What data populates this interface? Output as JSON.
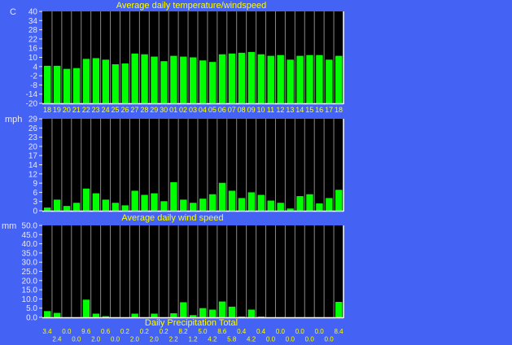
{
  "chart_data": [
    {
      "type": "bar",
      "title": "Average daily temperature/windspeed",
      "ylabel": "C",
      "ylim": [
        -20,
        40
      ],
      "yticks": [
        "40",
        "34",
        "28",
        "22",
        "16",
        "10",
        "4",
        "-2",
        "-8",
        "-14",
        "-20"
      ],
      "categories": [
        "18",
        "19",
        "20",
        "21",
        "22",
        "23",
        "24",
        "25",
        "26",
        "27",
        "28",
        "29",
        "30",
        "01",
        "02",
        "03",
        "04",
        "05",
        "06",
        "07",
        "08",
        "09",
        "10",
        "11",
        "12",
        "13",
        "14",
        "15",
        "16",
        "17",
        "18"
      ],
      "values": [
        4.5,
        4.5,
        2.5,
        3,
        9,
        9.5,
        8.5,
        5.5,
        6,
        12.5,
        12,
        10.5,
        7.5,
        11,
        10.5,
        10,
        8,
        7,
        12,
        12.5,
        13,
        13.5,
        12,
        11,
        11.5,
        8.5,
        11,
        11.5,
        11.5,
        8.5,
        11
      ],
      "bar_color": "#00ff00",
      "grid": true
    },
    {
      "type": "bar",
      "title": "Average daily wind speed",
      "ylabel": "mph",
      "ylim": [
        0,
        29
      ],
      "yticks": [
        "29",
        "26",
        "23",
        "20",
        "17",
        "14",
        "12",
        "9",
        "6",
        "3",
        "0"
      ],
      "categories": [
        "18",
        "19",
        "20",
        "21",
        "22",
        "23",
        "24",
        "25",
        "26",
        "27",
        "28",
        "29",
        "30",
        "01",
        "02",
        "03",
        "04",
        "05",
        "06",
        "07",
        "08",
        "09",
        "10",
        "11",
        "12",
        "13",
        "14",
        "15",
        "16",
        "17",
        "18"
      ],
      "values": [
        1,
        3.5,
        1.5,
        2.5,
        7,
        5.5,
        3.5,
        2.5,
        1.7,
        6.3,
        5,
        5.5,
        3,
        9,
        3.5,
        2.5,
        3.8,
        5.2,
        8.8,
        6.3,
        4,
        5.8,
        5,
        3.2,
        2.5,
        0.7,
        4.6,
        5.2,
        2.3,
        4,
        6.6
      ],
      "bar_color": "#00ff00",
      "grid": true
    },
    {
      "type": "bar",
      "title": "Daily Precipitation Total",
      "ylabel": "mm",
      "ylim": [
        0,
        50
      ],
      "yticks": [
        "50.0",
        "45.0",
        "40.0",
        "35.0",
        "30.0",
        "25.0",
        "20.0",
        "15.0",
        "10.0",
        "5.0",
        "0.0"
      ],
      "values": [
        3.4,
        2.4,
        0.0,
        0.0,
        9.6,
        2.0,
        0.6,
        0.0,
        0.2,
        2.0,
        0.2,
        2.0,
        0.2,
        2.2,
        8.2,
        1.2,
        5.0,
        4.2,
        8.6,
        5.8,
        0.4,
        4.2,
        0.4,
        0.0,
        0.0,
        0.0,
        0.0,
        0.0,
        0.0,
        0.0,
        8.4
      ],
      "data_labels": [
        "3.4",
        "2.4",
        "0.0",
        "0.0",
        "9.6",
        "2.0",
        "0.6",
        "0.0",
        "0.2",
        "2.0",
        "0.2",
        "2.0",
        "0.2",
        "2.2",
        "8.2",
        "1.2",
        "5.0",
        "4.2",
        "8.6",
        "5.8",
        "0.4",
        "4.2",
        "0.4",
        "0.0",
        "0.0",
        "0.0",
        "0.0",
        "0.0",
        "0.0",
        "0.0",
        "8.4"
      ],
      "bar_color": "#00ff00",
      "grid": true
    }
  ]
}
